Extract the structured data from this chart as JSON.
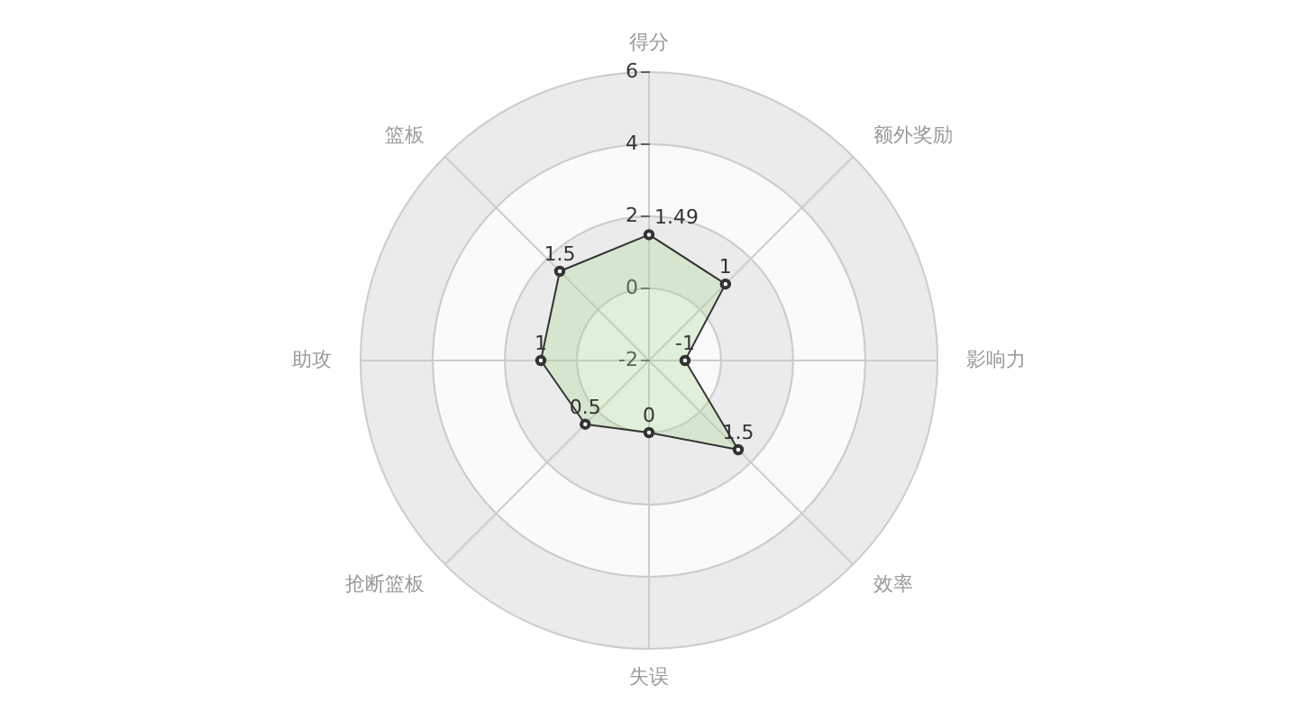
{
  "chart_data": {
    "type": "radar",
    "categories": [
      "得分",
      "额外奖励",
      "影响力",
      "效率",
      "失误",
      "抢断篮板",
      "助攻",
      "篮板"
    ],
    "series": [
      {
        "color": "#333333",
        "values": [
          1.49,
          1,
          -1,
          1.5,
          0,
          0.5,
          1,
          1.5
        ]
      }
    ],
    "ylim": [
      -2,
      6
    ],
    "yticks": [
      -2,
      0,
      2,
      4,
      6
    ],
    "grid": true,
    "data_labels": true,
    "marker": "circle"
  }
}
